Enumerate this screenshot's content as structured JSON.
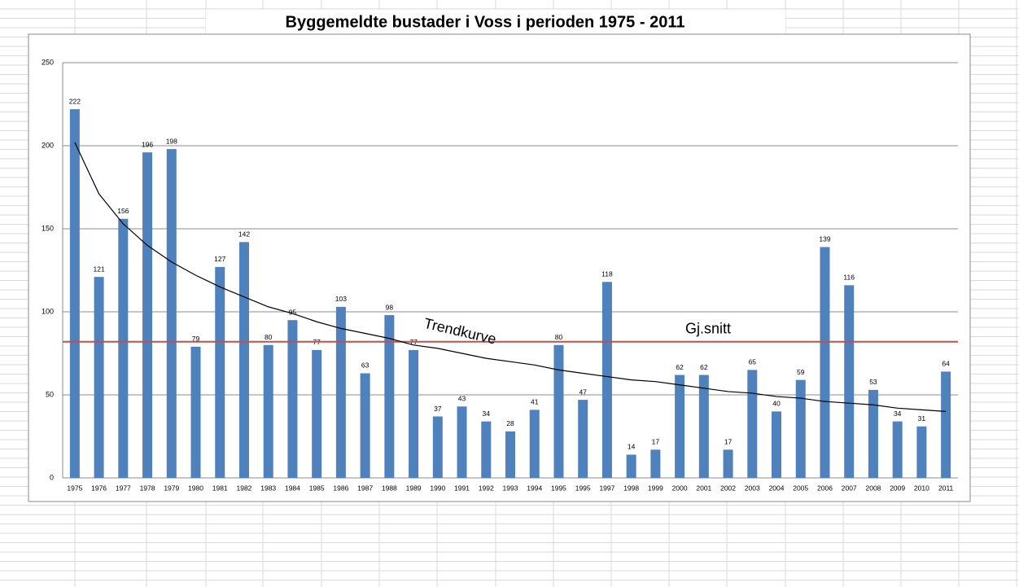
{
  "chart_data": {
    "type": "bar",
    "title": "Byggemeldte bustader i Voss i perioden 1975 - 2011",
    "categories": [
      "1975",
      "1976",
      "1977",
      "1978",
      "1979",
      "1980",
      "1981",
      "1982",
      "1983",
      "1984",
      "1985",
      "1986",
      "1987",
      "1988",
      "1989",
      "1990",
      "1991",
      "1992",
      "1993",
      "1994",
      "1995",
      "1995",
      "1997",
      "1998",
      "1999",
      "2000",
      "2001",
      "2002",
      "2003",
      "2004",
      "2005",
      "2006",
      "2007",
      "2008",
      "2009",
      "2010",
      "2011"
    ],
    "values": [
      222,
      121,
      156,
      196,
      198,
      79,
      127,
      142,
      80,
      95,
      77,
      103,
      63,
      98,
      77,
      37,
      43,
      34,
      28,
      41,
      80,
      47,
      118,
      14,
      17,
      62,
      62,
      17,
      65,
      40,
      59,
      139,
      116,
      53,
      34,
      31,
      64
    ],
    "color": "#4f81bd",
    "ylim": [
      0,
      250
    ],
    "yticks": [
      0,
      50,
      100,
      150,
      200,
      250
    ],
    "grid": true,
    "average": {
      "label": "Gj.snitt",
      "value": 82,
      "color": "#c0504d"
    },
    "trend": {
      "label": "Trendkurve",
      "color": "#000000",
      "values": [
        202,
        171,
        153,
        140,
        130,
        122,
        115,
        109,
        103,
        99,
        94,
        90,
        87,
        84,
        80,
        78,
        75,
        72,
        70,
        68,
        65,
        63,
        61,
        59,
        58,
        56,
        54,
        52,
        51,
        49,
        48,
        46,
        45,
        44,
        42,
        41,
        40
      ]
    }
  }
}
